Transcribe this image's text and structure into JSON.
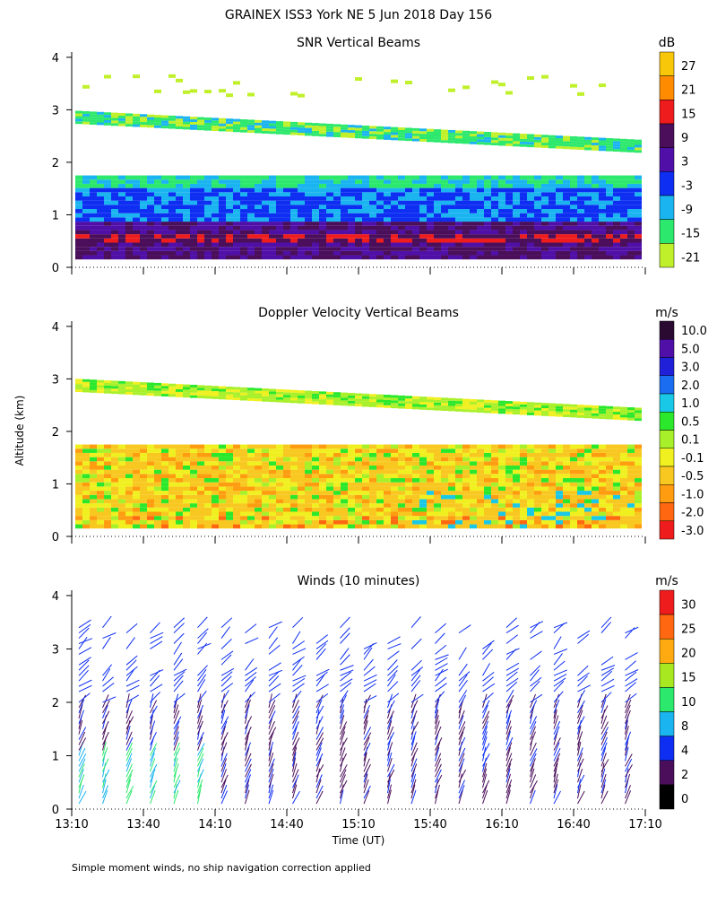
{
  "figure": {
    "title": "GRAINEX ISS3 York NE   5 Jun 2018 Day 156",
    "ylabel": "Altitude (km)",
    "xlabel": "Time (UT)",
    "footnote": "Simple moment winds, no ship navigation correction applied"
  },
  "chart_data": [
    {
      "type": "heatmap",
      "title": "SNR Vertical Beams",
      "units": "dB",
      "x_ticks": [
        "13:10",
        "13:40",
        "14:10",
        "14:40",
        "15:10",
        "15:40",
        "16:10",
        "16:40",
        "17:10"
      ],
      "y_ticks": [
        0,
        1,
        2,
        3,
        4
      ],
      "ylim": [
        0,
        4.1
      ],
      "colorbar": {
        "labels": [
          "27",
          "21",
          "15",
          "9",
          "3",
          "-3",
          "-9",
          "-15",
          "-21"
        ],
        "colors": [
          "#f9c70a",
          "#ff8c00",
          "#ee1c1c",
          "#4a0e5a",
          "#5010a8",
          "#0e2ef2",
          "#1ab4f0",
          "#2ce86c",
          "#c0f02a"
        ]
      },
      "layers": [
        {
          "name": "upper layer",
          "alt_start_km": 2.85,
          "alt_end_km": 2.3,
          "colors": [
            "#2ce86c",
            "#1ab4f0"
          ]
        },
        {
          "name": "lower cloud",
          "alt_top_km": 1.7,
          "alt_bottom_km": 0.15,
          "colors": [
            "#0e2ef2",
            "#1ab4f0",
            "#5010a8",
            "#4a0e5a",
            "#ee1c1c"
          ]
        }
      ]
    },
    {
      "type": "heatmap",
      "title": "Doppler Velocity Vertical Beams",
      "units": "m/s",
      "x_ticks": [
        "13:10",
        "13:40",
        "14:10",
        "14:40",
        "15:10",
        "15:40",
        "16:10",
        "16:40",
        "17:10"
      ],
      "y_ticks": [
        0,
        1,
        2,
        3,
        4
      ],
      "ylim": [
        0,
        4.1
      ],
      "colorbar": {
        "labels": [
          "10.0",
          "5.0",
          "3.0",
          "2.0",
          "1.0",
          "0.5",
          "0.1",
          "-0.1",
          "-0.5",
          "-1.0",
          "-2.0",
          "-3.0"
        ],
        "colors": [
          "#2a0a30",
          "#5010a8",
          "#2020d8",
          "#1a6cf0",
          "#18c8e6",
          "#2ce82c",
          "#a8f02a",
          "#f0f020",
          "#f8c820",
          "#ff9c10",
          "#ff6810",
          "#ee1c1c"
        ]
      }
    },
    {
      "type": "barbs",
      "title": "Winds (10 minutes)",
      "units": "m/s",
      "x_ticks": [
        "13:10",
        "13:40",
        "14:10",
        "14:40",
        "15:10",
        "15:40",
        "16:10",
        "16:40",
        "17:10"
      ],
      "y_ticks": [
        0,
        1,
        2,
        3,
        4
      ],
      "ylim": [
        0,
        4.1
      ],
      "colorbar": {
        "labels": [
          "30",
          "25",
          "20",
          "15",
          "10",
          "8",
          "4",
          "2",
          "0"
        ],
        "colors": [
          "#ee1c1c",
          "#ff6810",
          "#ffaa10",
          "#a8e820",
          "#2ce86c",
          "#1ab4f0",
          "#0e2ef2",
          "#4a0e5a",
          "#000000"
        ]
      }
    }
  ]
}
